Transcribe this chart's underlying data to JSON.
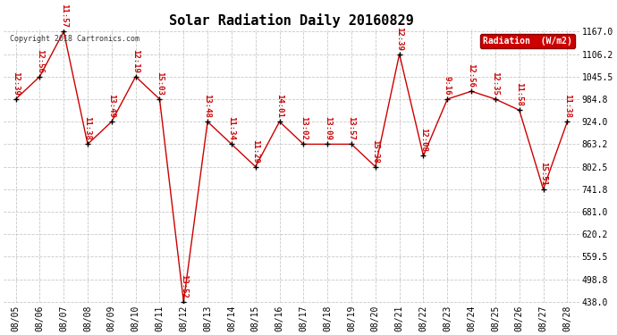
{
  "title": "Solar Radiation Daily 20160829",
  "copyright": "Copyright 2018 Cartronics.com",
  "legend_label": "Radiation  (W/m2)",
  "dates": [
    "08/05",
    "08/06",
    "08/07",
    "08/08",
    "08/09",
    "08/10",
    "08/11",
    "08/12",
    "08/13",
    "08/14",
    "08/15",
    "08/16",
    "08/17",
    "08/18",
    "08/19",
    "08/20",
    "08/21",
    "08/22",
    "08/23",
    "08/24",
    "08/25",
    "08/26",
    "08/27",
    "08/28"
  ],
  "values": [
    984.8,
    1045.5,
    1167.0,
    863.2,
    924.0,
    1045.5,
    984.8,
    438.0,
    924.0,
    863.2,
    802.5,
    924.0,
    863.2,
    863.2,
    863.2,
    802.5,
    1106.2,
    832.0,
    984.8,
    1006.0,
    984.8,
    955.0,
    741.8,
    924.0
  ],
  "point_labels": [
    "12:39",
    "12:56",
    "11:57",
    "11:38",
    "13:49",
    "12:19",
    "15:03",
    "13:52",
    "13:48",
    "11:34",
    "11:29",
    "14:01",
    "13:02",
    "13:09",
    "13:57",
    "15:38",
    "12:39",
    "12:08",
    "9:16",
    "12:56",
    "12:35",
    "11:58",
    "15:51",
    "11:38"
  ],
  "line_color": "#cc0000",
  "marker_color": "#000000",
  "label_color": "#cc0000",
  "bg_color": "#ffffff",
  "grid_color": "#c8c8c8",
  "ylim_min": 438.0,
  "ylim_max": 1167.0,
  "yticks": [
    438.0,
    498.8,
    559.5,
    620.2,
    681.0,
    741.8,
    802.5,
    863.2,
    924.0,
    984.8,
    1045.5,
    1106.2,
    1167.0
  ],
  "legend_bg": "#cc0000",
  "legend_text_color": "#ffffff",
  "title_fontsize": 11,
  "tick_fontsize": 7,
  "label_fontsize": 6.5
}
